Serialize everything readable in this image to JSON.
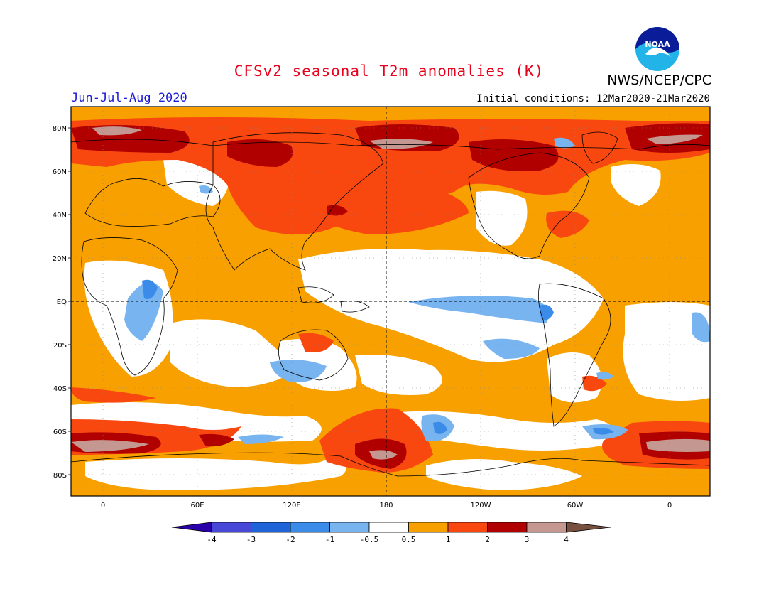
{
  "header": {
    "title": "CFSv2 seasonal T2m anomalies (K)",
    "agency": "NWS/NCEP/CPC",
    "season": "Jun-Jul-Aug 2020",
    "initial_conditions": "Initial conditions: 12Mar2020-21Mar2020",
    "logo_text": "NOAA"
  },
  "map": {
    "lat_labels": [
      "80N",
      "60N",
      "40N",
      "20N",
      "EQ",
      "20S",
      "40S",
      "60S",
      "80S"
    ],
    "lon_labels": [
      "0",
      "60E",
      "120E",
      "180",
      "120W",
      "60W",
      "0"
    ]
  },
  "legend": {
    "labels": [
      "-4",
      "-3",
      "-2",
      "-1",
      "-0.5",
      "0.5",
      "1",
      "2",
      "3",
      "4"
    ],
    "colors": [
      "#2a00a8",
      "#4848d8",
      "#1e64d8",
      "#3a8ce8",
      "#78b4f0",
      "#ffffff",
      "#f8a000",
      "#f84810",
      "#b00000",
      "#c49890",
      "#785040"
    ]
  },
  "palette": {
    "orange": "#f8a000",
    "red": "#f84810",
    "darkred": "#b00000",
    "rose": "#c49890",
    "lightblue": "#78b4f0",
    "blue": "#3a8ce8"
  }
}
